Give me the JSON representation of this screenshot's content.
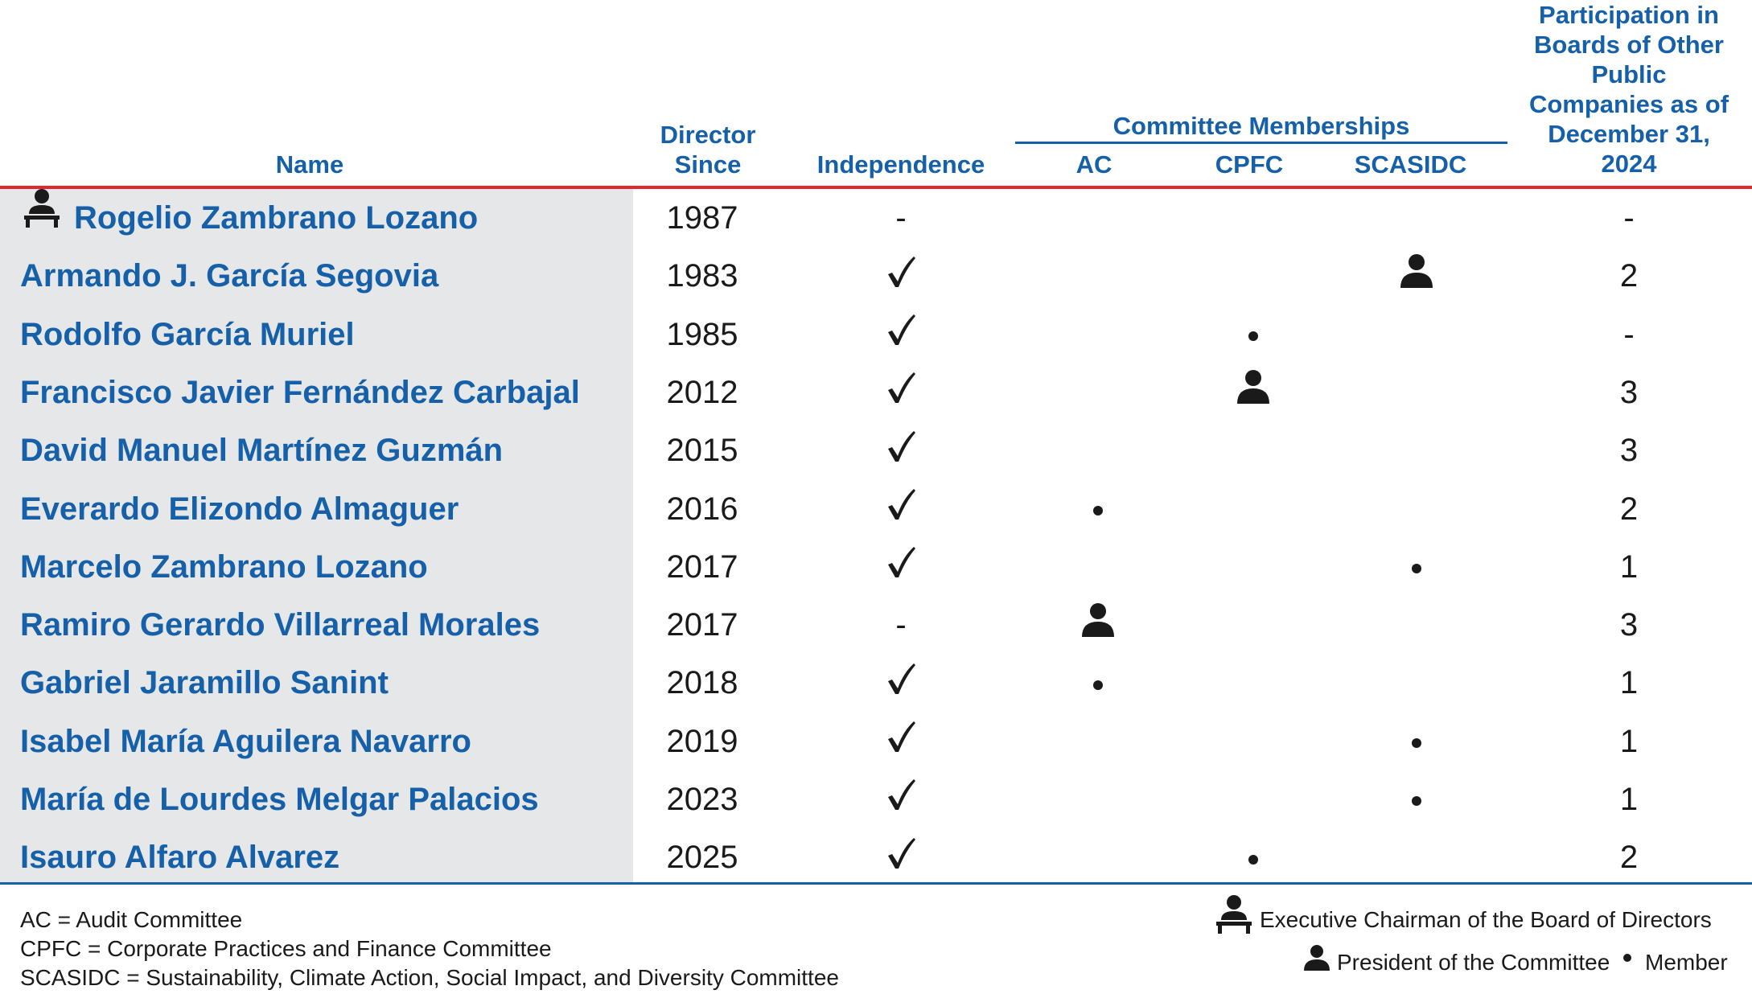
{
  "headers": {
    "name": "Name",
    "since_l1": "Director",
    "since_l2": "Since",
    "independence": "Independence",
    "committee": "Committee Memberships",
    "ac": "AC",
    "cpfc": "CPFC",
    "scasidc": "SCASIDC",
    "part_l1": "Participation in",
    "part_l2": "Boards of Other",
    "part_l3": "Public",
    "part_l4": "Companies as of",
    "part_l5": "December 31,",
    "part_l6": "2024"
  },
  "rows": [
    {
      "name": "Rogelio Zambrano Lozano",
      "chairman": true,
      "since": "1987",
      "independence": "-",
      "ac": "",
      "cpfc": "",
      "scasidc": "",
      "participation": "-"
    },
    {
      "name": "Armando J. García Segovia",
      "chairman": false,
      "since": "1983",
      "independence": "check",
      "ac": "",
      "cpfc": "",
      "scasidc": "president",
      "participation": "2"
    },
    {
      "name": "Rodolfo García Muriel",
      "chairman": false,
      "since": "1985",
      "independence": "check",
      "ac": "",
      "cpfc": "member",
      "scasidc": "",
      "participation": "-"
    },
    {
      "name": "Francisco Javier Fernández Carbajal",
      "chairman": false,
      "since": "2012",
      "independence": "check",
      "ac": "",
      "cpfc": "president",
      "scasidc": "",
      "participation": "3"
    },
    {
      "name": "David Manuel Martínez Guzmán",
      "chairman": false,
      "since": "2015",
      "independence": "check",
      "ac": "",
      "cpfc": "",
      "scasidc": "",
      "participation": "3"
    },
    {
      "name": "Everardo Elizondo Almaguer",
      "chairman": false,
      "since": "2016",
      "independence": "check",
      "ac": "member",
      "cpfc": "",
      "scasidc": "",
      "participation": "2"
    },
    {
      "name": "Marcelo Zambrano Lozano",
      "chairman": false,
      "since": "2017",
      "independence": "check",
      "ac": "",
      "cpfc": "",
      "scasidc": "member",
      "participation": "1"
    },
    {
      "name": "Ramiro Gerardo Villarreal Morales",
      "chairman": false,
      "since": "2017",
      "independence": "-",
      "ac": "president",
      "cpfc": "",
      "scasidc": "",
      "participation": "3"
    },
    {
      "name": "Gabriel Jaramillo Sanint",
      "chairman": false,
      "since": "2018",
      "independence": "check",
      "ac": "member",
      "cpfc": "",
      "scasidc": "",
      "participation": "1"
    },
    {
      "name": "Isabel María Aguilera Navarro",
      "chairman": false,
      "since": "2019",
      "independence": "check",
      "ac": "",
      "cpfc": "",
      "scasidc": "member",
      "participation": "1"
    },
    {
      "name": "María de Lourdes Melgar Palacios",
      "chairman": false,
      "since": "2023",
      "independence": "check",
      "ac": "",
      "cpfc": "",
      "scasidc": "member",
      "participation": "1"
    },
    {
      "name": "Isauro Alfaro Alvarez",
      "chairman": false,
      "since": "2025",
      "independence": "check",
      "ac": "",
      "cpfc": "member",
      "scasidc": "",
      "participation": "2"
    }
  ],
  "footer": {
    "ac_def": "AC = Audit Committee",
    "cpfc_def": "CPFC = Corporate Practices and Finance Committee",
    "scasidc_def": "SCASIDC = Sustainability, Climate Action, Social Impact, and Diversity Committee",
    "chairman_legend": "Executive Chairman of the Board of Directors",
    "president_legend": "President of the Committee",
    "member_legend": "Member"
  },
  "icons": {
    "chairman": "chairman-person-icon",
    "president": "person-icon",
    "member": "bullet-dot-icon",
    "independent": "checkmark-icon"
  },
  "colors": {
    "header_blue": "#1560a8",
    "accent_red": "#e3262e",
    "name_column_bg": "#e6e7e8",
    "text": "#1a1a1a"
  }
}
